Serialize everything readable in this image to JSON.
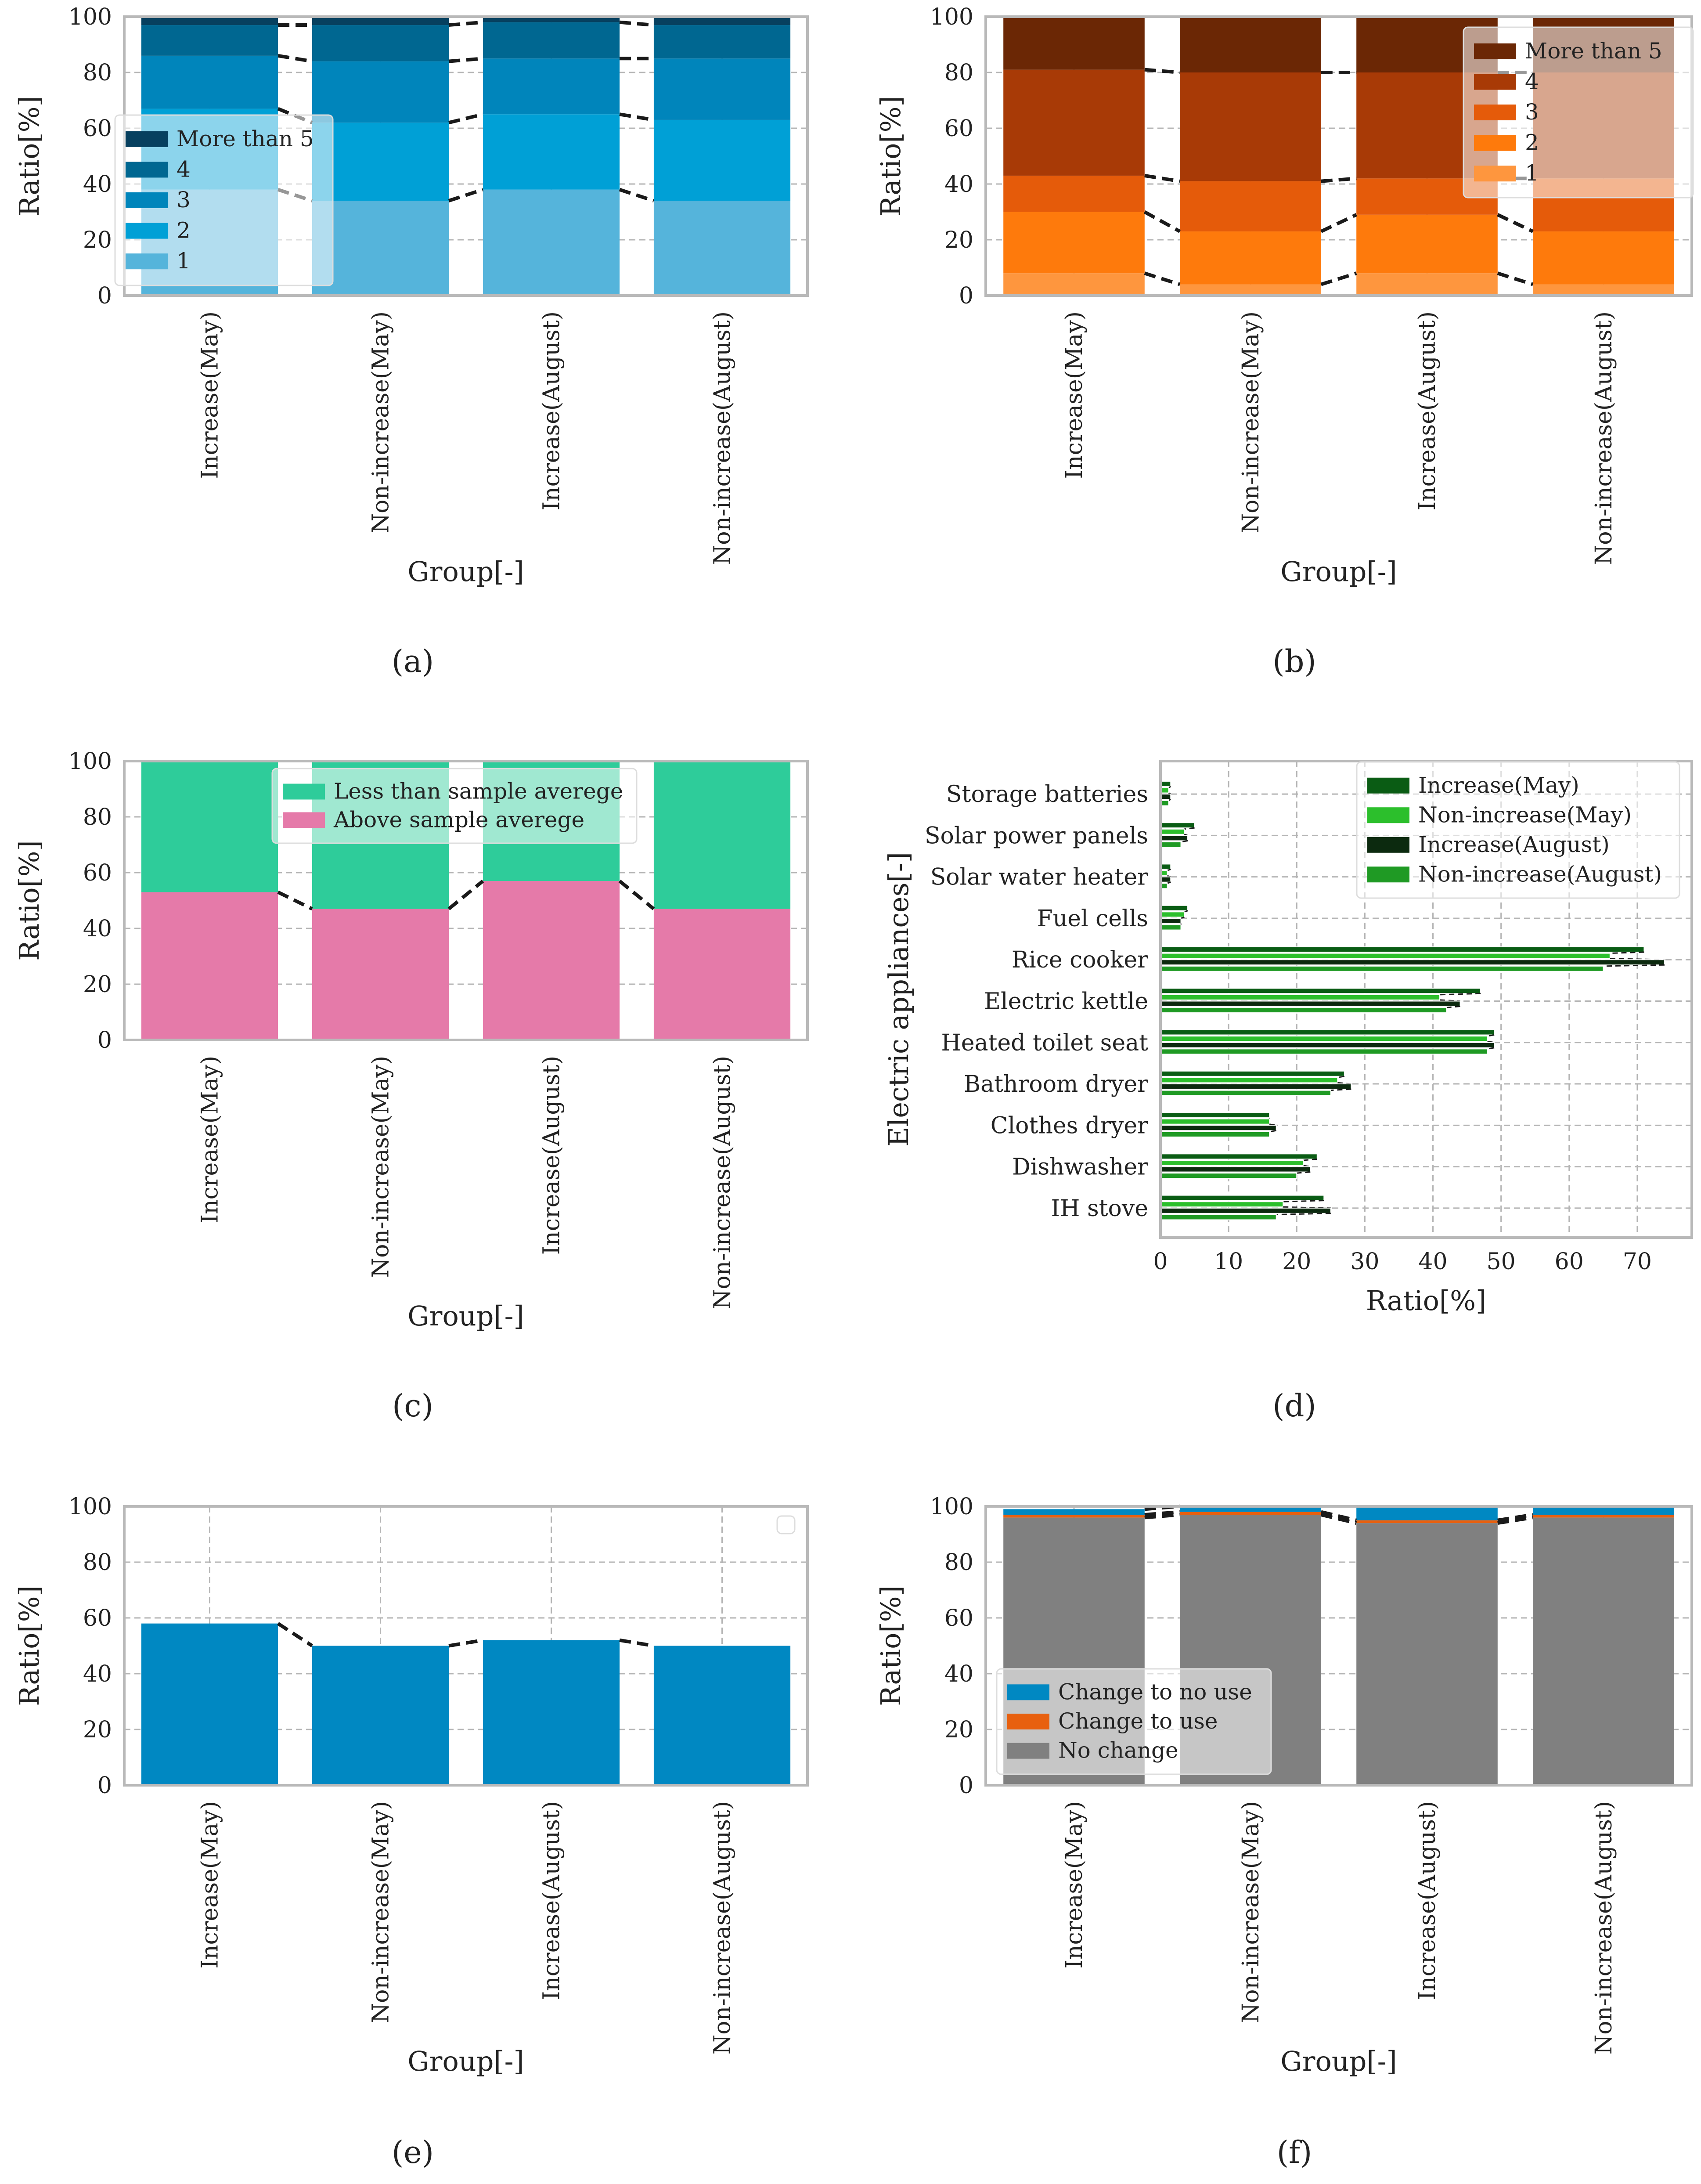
{
  "chart_data": [
    {
      "id": "a",
      "type": "bar",
      "stacked": true,
      "caption": "(a)",
      "xlabel": "Group[-]",
      "ylabel": "Ratio[%]",
      "ylim": [
        0,
        100
      ],
      "yticks": [
        0,
        20,
        40,
        60,
        80,
        100
      ],
      "grid": true,
      "legend_position": "center-left",
      "categories": [
        "Increase(May)",
        "Non-increase(May)",
        "Increase(August)",
        "Non-increase(August)"
      ],
      "series": [
        {
          "name": "1",
          "color": "#55b4db",
          "values": [
            38,
            34,
            38,
            34
          ]
        },
        {
          "name": "2",
          "color": "#00a0d6",
          "values": [
            29,
            28,
            27,
            29
          ]
        },
        {
          "name": "3",
          "color": "#0085bb",
          "values": [
            19,
            22,
            20,
            22
          ]
        },
        {
          "name": "4",
          "color": "#006791",
          "values": [
            11,
            13,
            13,
            12
          ]
        },
        {
          "name": "More than 5",
          "color": "#07405f",
          "values": [
            3,
            3,
            2,
            3
          ]
        }
      ]
    },
    {
      "id": "b",
      "type": "bar",
      "stacked": true,
      "caption": "(b)",
      "xlabel": "Group[-]",
      "ylabel": "Ratio[%]",
      "ylim": [
        0,
        100
      ],
      "yticks": [
        0,
        20,
        40,
        60,
        80,
        100
      ],
      "grid": true,
      "legend_position": "top-right",
      "categories": [
        "Increase(May)",
        "Non-increase(May)",
        "Increase(August)",
        "Non-increase(August)"
      ],
      "series": [
        {
          "name": "1",
          "color": "#fe963e",
          "values": [
            8,
            4,
            8,
            4
          ]
        },
        {
          "name": "2",
          "color": "#fe7a0c",
          "values": [
            22,
            19,
            21,
            19
          ]
        },
        {
          "name": "3",
          "color": "#e55b0a",
          "values": [
            13,
            18,
            13,
            19
          ]
        },
        {
          "name": "4",
          "color": "#a83a06",
          "values": [
            38,
            39,
            38,
            38
          ]
        },
        {
          "name": "More than 5",
          "color": "#6b2705",
          "values": [
            19,
            20,
            20,
            20
          ]
        }
      ]
    },
    {
      "id": "c",
      "type": "bar",
      "stacked": true,
      "caption": "(c)",
      "xlabel": "Group[-]",
      "ylabel": "Ratio[%]",
      "ylim": [
        0,
        100
      ],
      "yticks": [
        0,
        20,
        40,
        60,
        80,
        100
      ],
      "grid": true,
      "legend_position": "top-center",
      "categories": [
        "Increase(May)",
        "Non-increase(May)",
        "Increase(August)",
        "Non-increase(August)"
      ],
      "series": [
        {
          "name": "Above sample averege",
          "color": "#e57aa9",
          "values": [
            53,
            47,
            57,
            47
          ]
        },
        {
          "name": "Less than sample averege",
          "color": "#2ecc9a",
          "values": [
            47,
            53,
            43,
            53
          ]
        }
      ]
    },
    {
      "id": "d",
      "type": "bar",
      "orientation": "horizontal",
      "caption": "(d)",
      "xlabel": "Ratio[%]",
      "ylabel": "Electric appliances[-]",
      "xlim": [
        0,
        78
      ],
      "xticks": [
        0,
        10,
        20,
        30,
        40,
        50,
        60,
        70
      ],
      "grid": true,
      "legend_position": "top-right",
      "categories": [
        "Storage batteries",
        "Solar power panels",
        "Solar water heater",
        "Fuel cells",
        "Rice cooker",
        "Electric kettle",
        "Heated toilet seat",
        "Bathroom dryer",
        "Clothes dryer",
        "Dishwasher",
        "IH stove"
      ],
      "series": [
        {
          "name": "Increase(May)",
          "color": "#0a5c14",
          "values": [
            1.5,
            5,
            1.5,
            4,
            71,
            47,
            49,
            27,
            16,
            23,
            24
          ]
        },
        {
          "name": "Non-increase(May)",
          "color": "#2cbf2c",
          "values": [
            1.2,
            3.5,
            1.0,
            3.5,
            66,
            41,
            48,
            26,
            16,
            21,
            18
          ]
        },
        {
          "name": "Increase(August)",
          "color": "#0c2a0f",
          "values": [
            1.5,
            4,
            1.5,
            3,
            74,
            44,
            49,
            28,
            17,
            22,
            25
          ]
        },
        {
          "name": "Non-increase(August)",
          "color": "#1f9a24",
          "values": [
            1.2,
            3,
            1.0,
            3,
            65,
            42,
            48,
            25,
            16,
            20,
            17
          ]
        }
      ]
    },
    {
      "id": "e",
      "type": "bar",
      "caption": "(e)",
      "xlabel": "Group[-]",
      "ylabel": "Ratio[%]",
      "ylim": [
        0,
        100
      ],
      "yticks": [
        0,
        20,
        40,
        60,
        80,
        100
      ],
      "grid": true,
      "legend_position": "top-right",
      "categories": [
        "Increase(May)",
        "Non-increase(May)",
        "Increase(August)",
        "Non-increase(August)"
      ],
      "series": [
        {
          "name": "",
          "color": "#0088c2",
          "values": [
            58,
            50,
            52,
            50
          ]
        }
      ]
    },
    {
      "id": "f",
      "type": "bar",
      "stacked": true,
      "caption": "(f)",
      "xlabel": "Group[-]",
      "ylabel": "Ratio[%]",
      "ylim": [
        0,
        100
      ],
      "yticks": [
        0,
        20,
        40,
        60,
        80,
        100
      ],
      "grid": true,
      "legend_position": "bottom-left",
      "categories": [
        "Increase(May)",
        "Non-increase(May)",
        "Increase(August)",
        "Non-increase(August)"
      ],
      "series": [
        {
          "name": "No change",
          "color": "#808080",
          "values": [
            96,
            97,
            94,
            96
          ]
        },
        {
          "name": "Change to use",
          "color": "#e8600f",
          "values": [
            1,
            1,
            1,
            1
          ]
        },
        {
          "name": "Change to no use",
          "color": "#0088c2",
          "values": [
            2,
            2,
            5,
            3
          ]
        }
      ]
    }
  ]
}
